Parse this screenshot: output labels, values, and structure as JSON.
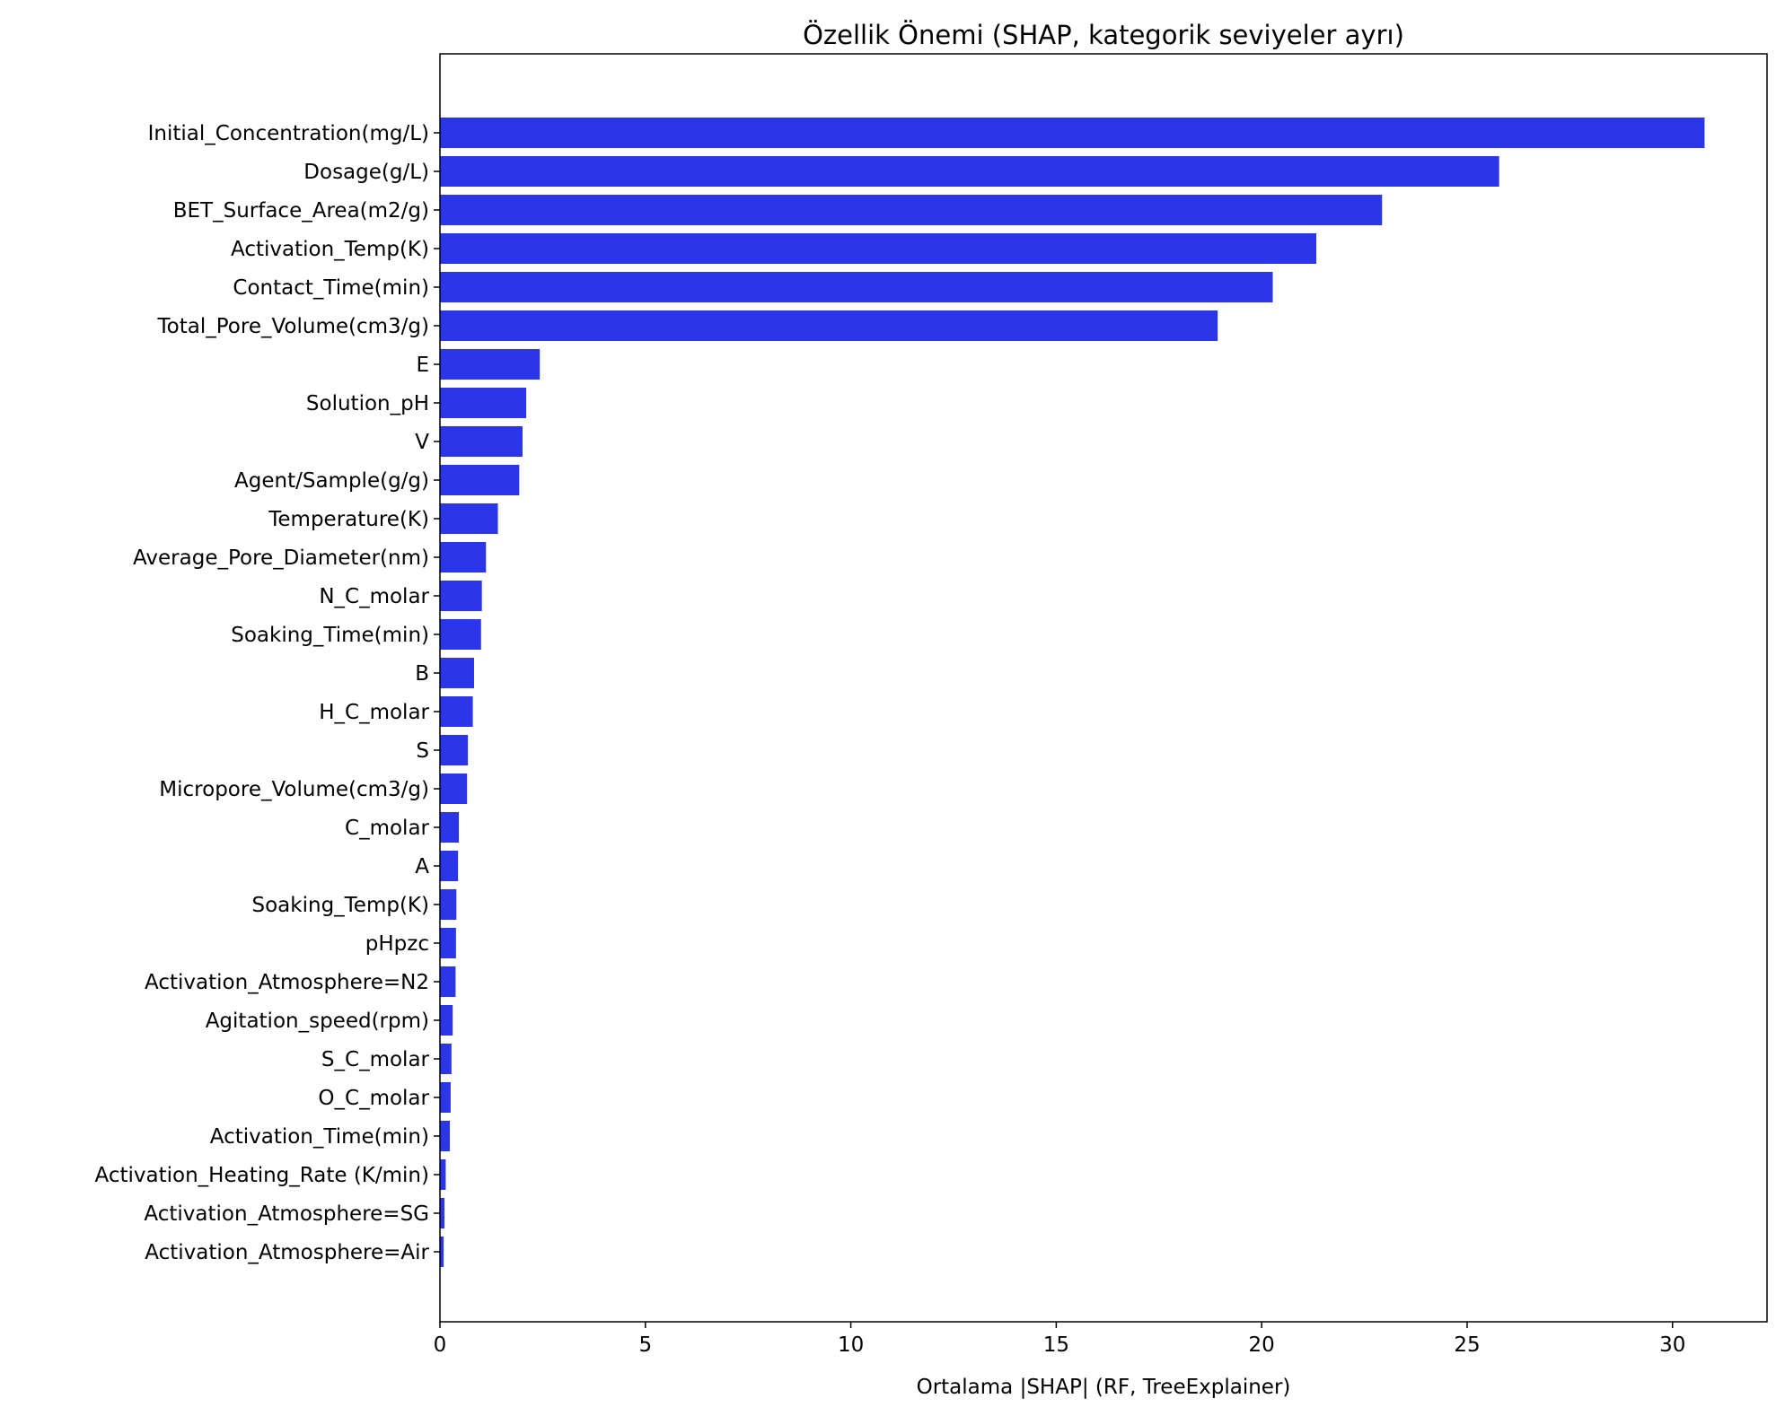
{
  "chart_data": {
    "type": "bar",
    "orientation": "horizontal",
    "title": "Özellik Önemi (SHAP, kategorik seviyeler ayrı)",
    "xlabel": "Ortalama |SHAP| (RF, TreeExplainer)",
    "ylabel": "",
    "xlim": [
      0,
      32.3
    ],
    "xticks": [
      "0",
      "5",
      "10",
      "15",
      "20",
      "25",
      "30"
    ],
    "grid": false,
    "bar_color": "#2a36e8",
    "categories": [
      "Initial_Concentration(mg/L)",
      "Dosage(g/L)",
      "BET_Surface_Area(m2/g)",
      "Activation_Temp(K)",
      "Contact_Time(min)",
      "Total_Pore_Volume(cm3/g)",
      "E",
      "Solution_pH",
      "V",
      "Agent/Sample(g/g)",
      "Temperature(K)",
      "Average_Pore_Diameter(nm)",
      "N_C_molar",
      "Soaking_Time(min)",
      "B",
      "H_C_molar",
      "S",
      "Micropore_Volume(cm3/g)",
      "C_molar",
      "A",
      "Soaking_Temp(K)",
      "pHpzc",
      "Activation_Atmosphere=N2",
      "Agitation_speed(rpm)",
      "S_C_molar",
      "O_C_molar",
      "Activation_Time(min)",
      "Activation_Heating_Rate (K/min)",
      "Activation_Atmosphere=SG",
      "Activation_Atmosphere=Air"
    ],
    "values": [
      30.78,
      25.78,
      22.93,
      21.33,
      20.27,
      18.93,
      2.43,
      2.1,
      2.01,
      1.93,
      1.41,
      1.12,
      1.02,
      1.0,
      0.83,
      0.8,
      0.68,
      0.66,
      0.46,
      0.44,
      0.4,
      0.39,
      0.38,
      0.31,
      0.28,
      0.26,
      0.24,
      0.14,
      0.11,
      0.09
    ]
  }
}
